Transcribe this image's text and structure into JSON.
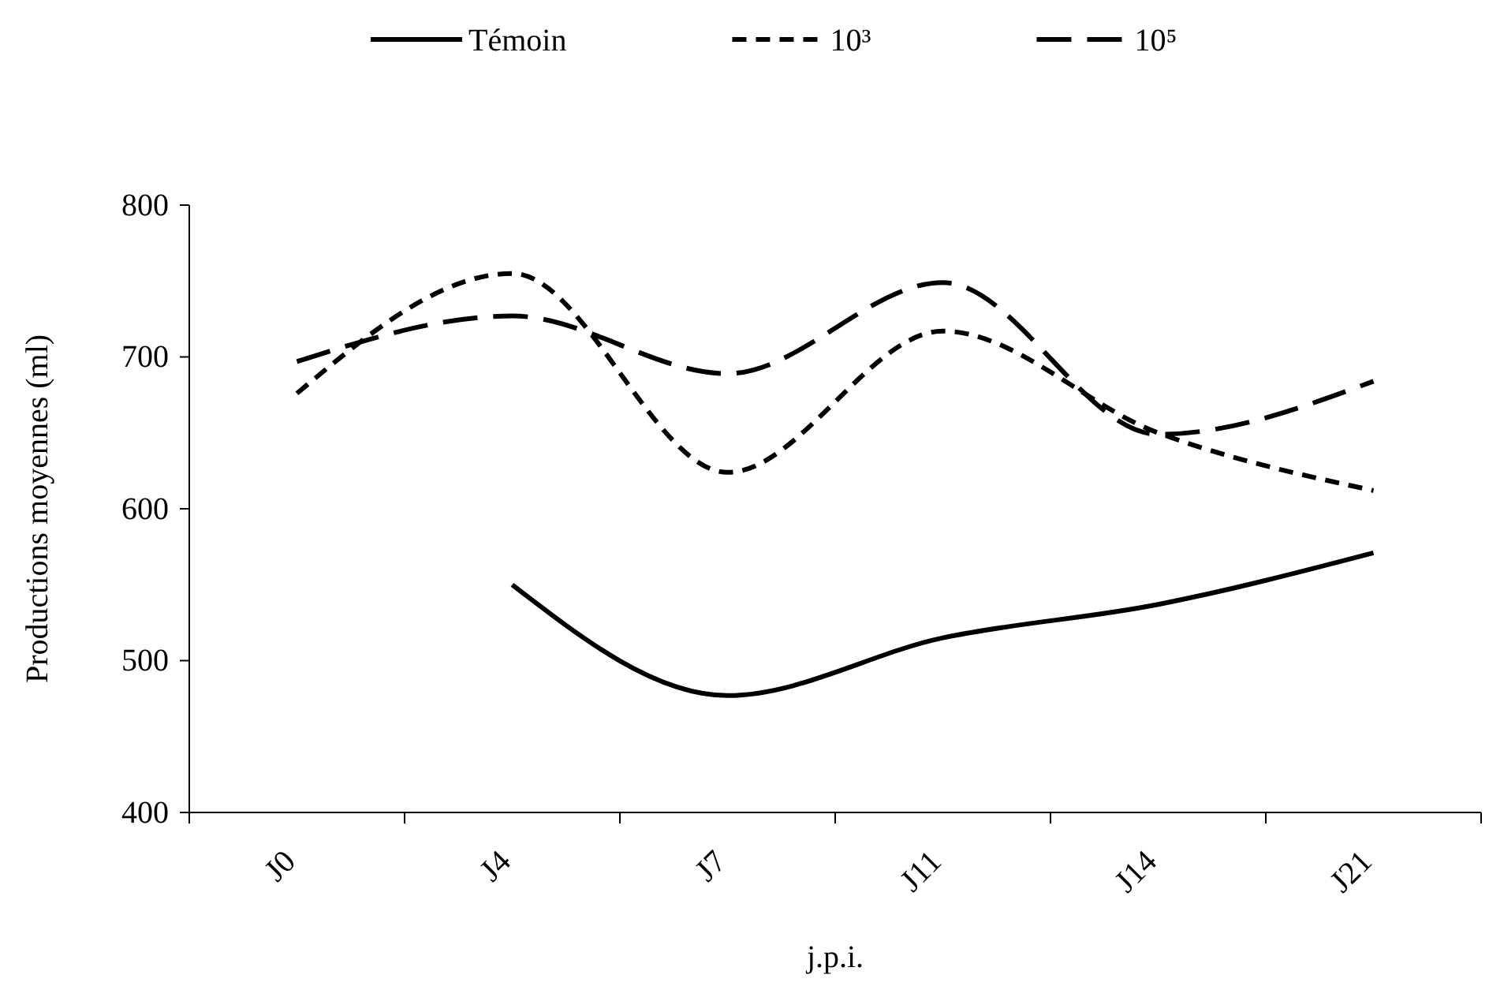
{
  "chart_data": {
    "type": "line",
    "xlabel": "j.p.i.",
    "ylabel": "Productions moyennes (ml)",
    "categories": [
      "J0",
      "J4",
      "J7",
      "J11",
      "J14",
      "J21"
    ],
    "series": [
      {
        "name": "Témoin",
        "color": "#000000",
        "line_style": "solid",
        "values": [
          null,
          550,
          477,
          515,
          537,
          571
        ]
      },
      {
        "name": "10³",
        "color": "#000000",
        "line_style": "dashed",
        "values": [
          676,
          755,
          624,
          717,
          650,
          612
        ]
      },
      {
        "name": "10⁵",
        "color": "#000000",
        "line_style": "longdash",
        "values": [
          697,
          727,
          689,
          749,
          649,
          684
        ]
      }
    ],
    "ylim": [
      400,
      800
    ],
    "yticks": [
      400,
      500,
      600,
      700,
      800
    ],
    "grid": false,
    "legend": "top",
    "marker": "none"
  }
}
